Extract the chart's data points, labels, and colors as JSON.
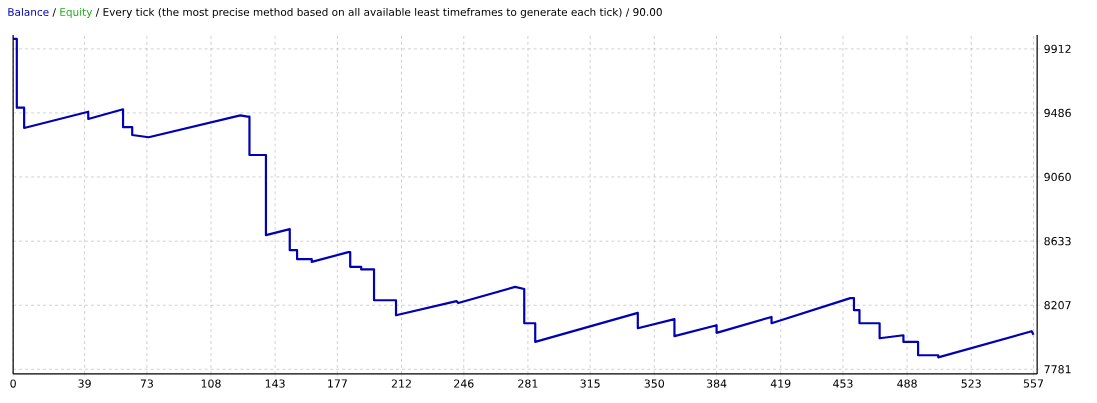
{
  "chart_data": {
    "type": "line",
    "title": "/ Every tick (the most precise method based on all available least timeframes to generate each tick) / 90.00",
    "annotations": [
      "/",
      "Equity"
    ],
    "series": [
      {
        "name": "Balance",
        "color": "#0000b4",
        "x": [
          0,
          2,
          2,
          6,
          6,
          41,
          41,
          60,
          60,
          65,
          65,
          74,
          124,
          128,
          129,
          129,
          138,
          138,
          151,
          151,
          155,
          155,
          163,
          163,
          183,
          184,
          184,
          190,
          190,
          197,
          197,
          209,
          209,
          242,
          243,
          274,
          279,
          279,
          285,
          285,
          341,
          341,
          361,
          361,
          384,
          384,
          414,
          414,
          457,
          459,
          459,
          462,
          462,
          473,
          473,
          486,
          486,
          494,
          494,
          505,
          505,
          556,
          557
        ],
        "values": [
          9979,
          9979,
          9521,
          9521,
          9386,
          9494,
          9446,
          9510,
          9391,
          9391,
          9339,
          9324,
          9470,
          9461,
          9461,
          9206,
          9206,
          8673,
          8713,
          8573,
          8573,
          8513,
          8513,
          8495,
          8560,
          8560,
          8462,
          8462,
          8445,
          8445,
          8240,
          8240,
          8140,
          8234,
          8222,
          8329,
          8315,
          8087,
          8087,
          7963,
          8156,
          8054,
          8114,
          8001,
          8074,
          8023,
          8129,
          8087,
          8254,
          8254,
          8174,
          8174,
          8087,
          8087,
          7987,
          8007,
          7963,
          7963,
          7874,
          7874,
          7860,
          8034,
          8010
        ]
      }
    ],
    "xlim": [
      0,
      559
    ],
    "ylim": [
      7750,
      10005
    ],
    "xticks": [
      0,
      39,
      73,
      108,
      143,
      177,
      212,
      246,
      281,
      315,
      350,
      384,
      419,
      453,
      488,
      523,
      557
    ],
    "yticks": [
      7781,
      8207,
      8633,
      9060,
      9486,
      9912
    ],
    "grid": true,
    "legend": "top left",
    "line_style": "solid"
  }
}
